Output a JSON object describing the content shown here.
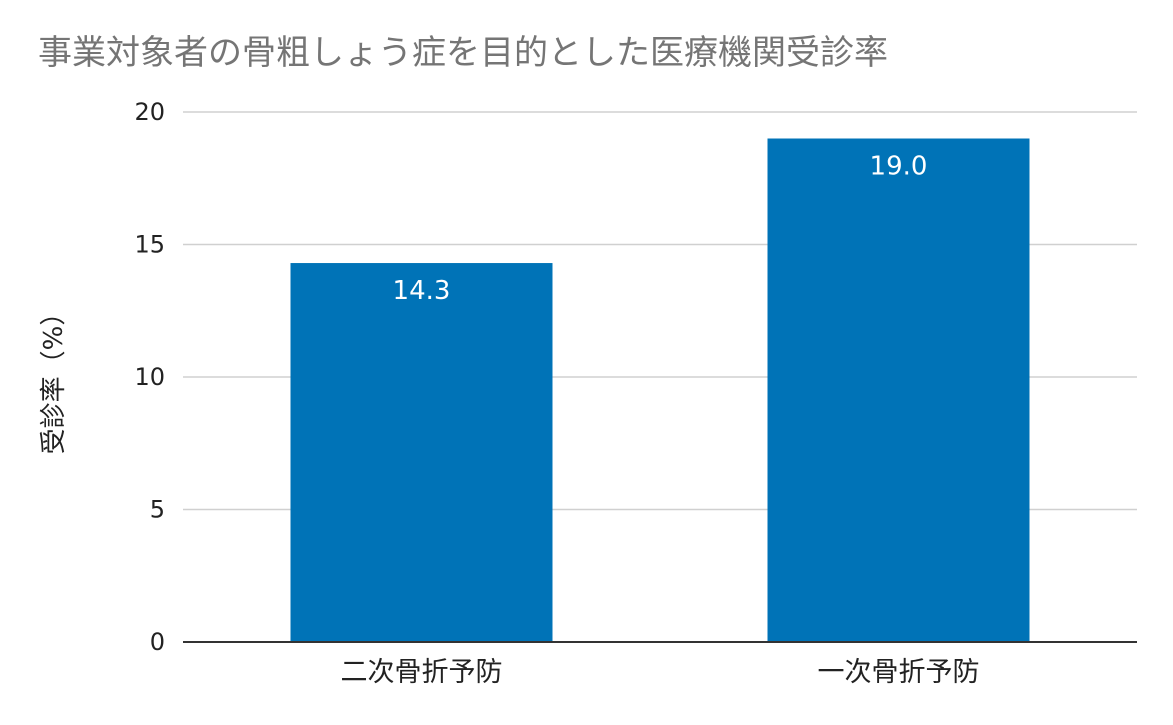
{
  "chart_data": {
    "type": "bar",
    "title": "事業対象者の骨粗しょう症を目的とした医療機関受診率",
    "xlabel": "",
    "ylabel": "受診率（%）",
    "categories": [
      "二次骨折予防",
      "一次骨折予防"
    ],
    "series": [
      {
        "values": [
          14.3,
          19.0
        ]
      }
    ],
    "data_labels": [
      "14.3",
      "19.0"
    ],
    "ylim": [
      0,
      20
    ],
    "yticks": [
      0,
      5,
      10,
      15,
      20
    ],
    "grid": true,
    "legend": "none",
    "bar_color": "#0073b7"
  }
}
